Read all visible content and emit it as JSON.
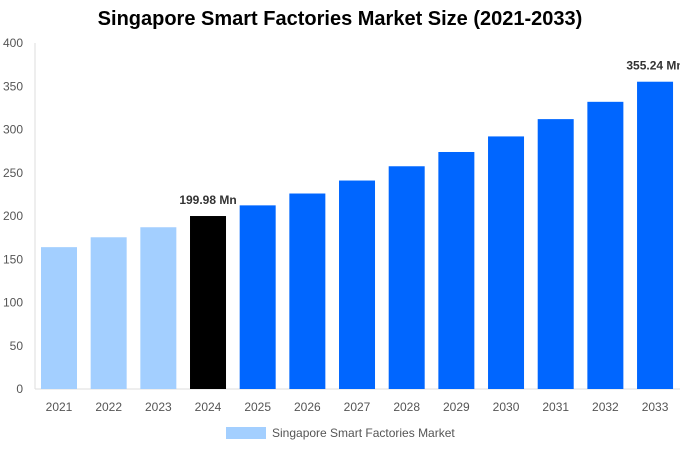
{
  "chart_data": {
    "type": "bar",
    "title": "Singapore Smart Factories Market Size (2021-2033)",
    "categories": [
      "2021",
      "2022",
      "2023",
      "2024",
      "2025",
      "2026",
      "2027",
      "2028",
      "2029",
      "2030",
      "2031",
      "2032",
      "2033"
    ],
    "series": [
      {
        "name": "Singapore Smart Factories Market",
        "values": [
          164,
          175.4,
          187,
          199.98,
          212.3,
          226,
          241,
          257.5,
          274,
          292,
          312,
          332,
          355.24
        ]
      }
    ],
    "data_labels": {
      "3": "199.98 Mn",
      "12": "355.24 Mn"
    },
    "ylim": [
      0,
      400
    ],
    "yticks": [
      0,
      50,
      100,
      150,
      200,
      250,
      300,
      350,
      400
    ],
    "grid": false,
    "legend": "bottom",
    "colors": {
      "historical": "#a3cfff",
      "base_year": "#000000",
      "forecast": "#0066ff"
    }
  }
}
